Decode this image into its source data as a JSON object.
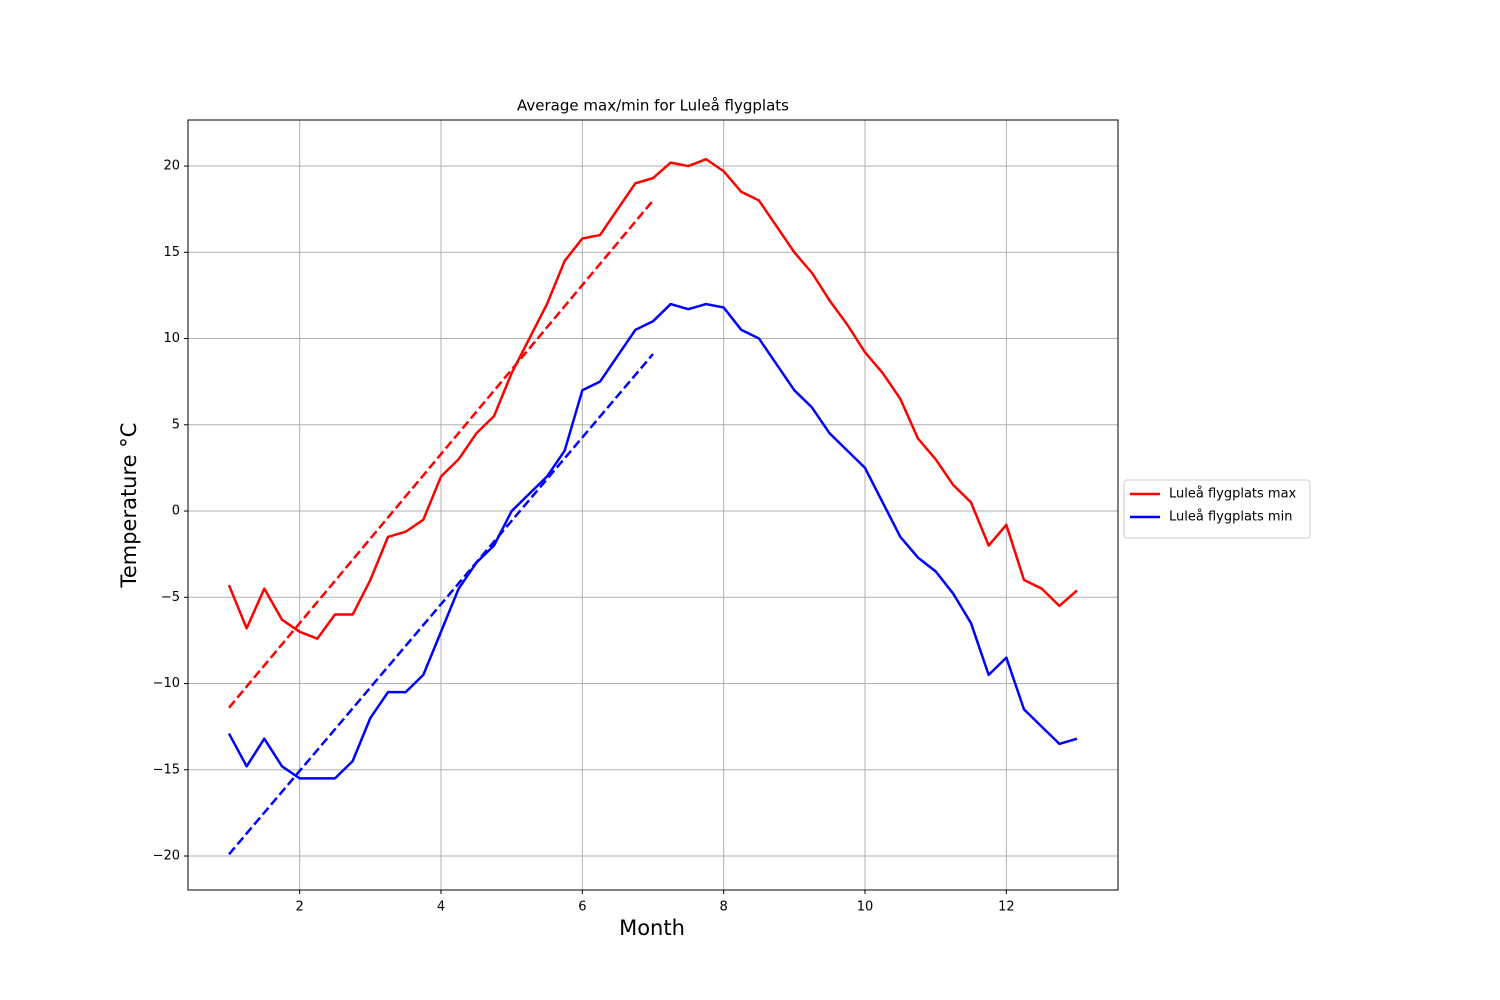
{
  "chart_data": {
    "type": "line",
    "title": "Average max/min for Luleå flygplats",
    "xlabel": "Month",
    "ylabel": "Temperature °C",
    "xlim": [
      0.42,
      13.58
    ],
    "ylim": [
      -21.97,
      22.67
    ],
    "xticks": [
      2,
      4,
      6,
      8,
      10,
      12
    ],
    "yticks": [
      {
        "value": -20,
        "label": "−20"
      },
      {
        "value": -15,
        "label": "−15"
      },
      {
        "value": -10,
        "label": "−10"
      },
      {
        "value": -5,
        "label": "−5"
      },
      0,
      5,
      10,
      15,
      20
    ],
    "grid": true,
    "legend": "right outside",
    "series": [
      {
        "name": "Luleå flygplats max",
        "color": "#ff0000",
        "x": [
          1,
          1.25,
          1.5,
          1.75,
          2,
          2.25,
          2.5,
          2.75,
          3,
          3.25,
          3.5,
          3.75,
          4,
          4.25,
          4.5,
          4.75,
          5,
          5.25,
          5.5,
          5.75,
          6,
          6.25,
          6.5,
          6.75,
          7,
          7.25,
          7.5,
          7.75,
          8,
          8.25,
          8.5,
          8.75,
          9,
          9.25,
          9.5,
          9.75,
          10,
          10.25,
          10.5,
          10.75,
          11,
          11.25,
          11.5,
          11.75,
          12,
          12.25,
          12.5,
          12.75,
          13
        ],
        "values": [
          -4.3,
          -6.8,
          -4.5,
          -6.3,
          -7.0,
          -7.4,
          -6.0,
          -6.0,
          -4.0,
          -1.5,
          -1.2,
          -0.5,
          2.0,
          3.0,
          4.5,
          5.5,
          8.0,
          10.0,
          12.0,
          14.5,
          15.8,
          16.0,
          17.5,
          19.0,
          19.3,
          20.2,
          20.0,
          20.4,
          19.7,
          18.5,
          18.0,
          16.5,
          15.0,
          13.8,
          12.2,
          10.8,
          9.2,
          8.0,
          6.5,
          4.2,
          3.0,
          1.5,
          0.5,
          -2.0,
          -0.8,
          -4.0,
          -4.5,
          -5.5,
          -4.6
        ]
      },
      {
        "name": "Luleå flygplats min",
        "color": "#0000ff",
        "x": [
          1,
          1.25,
          1.5,
          1.75,
          2,
          2.25,
          2.5,
          2.75,
          3,
          3.25,
          3.5,
          3.75,
          4,
          4.25,
          4.5,
          4.75,
          5,
          5.25,
          5.5,
          5.75,
          6,
          6.25,
          6.5,
          6.75,
          7,
          7.25,
          7.5,
          7.75,
          8,
          8.25,
          8.5,
          8.75,
          9,
          9.25,
          9.5,
          9.75,
          10,
          10.25,
          10.5,
          10.75,
          11,
          11.25,
          11.5,
          11.75,
          12,
          12.25,
          12.5,
          12.75,
          13
        ],
        "values": [
          -12.9,
          -14.8,
          -13.2,
          -14.8,
          -15.5,
          -15.5,
          -15.5,
          -14.5,
          -12.0,
          -10.5,
          -10.5,
          -9.5,
          -7.0,
          -4.5,
          -3.0,
          -2.0,
          0.0,
          1.0,
          2.0,
          3.5,
          7.0,
          7.5,
          9.0,
          10.5,
          11.0,
          12.0,
          11.7,
          12.0,
          11.8,
          10.5,
          10.0,
          8.5,
          7.0,
          6.0,
          4.5,
          3.5,
          2.5,
          0.5,
          -1.5,
          -2.7,
          -3.5,
          -4.8,
          -6.5,
          -9.5,
          -8.5,
          -11.5,
          -12.5,
          -13.5,
          -13.2
        ]
      },
      {
        "color": "#ff0000",
        "dashed": true,
        "x": [
          1,
          7
        ],
        "values": [
          -11.4,
          18.0
        ]
      },
      {
        "color": "#0000ff",
        "dashed": true,
        "x": [
          1,
          7
        ],
        "values": [
          -19.9,
          9.1
        ]
      }
    ]
  }
}
